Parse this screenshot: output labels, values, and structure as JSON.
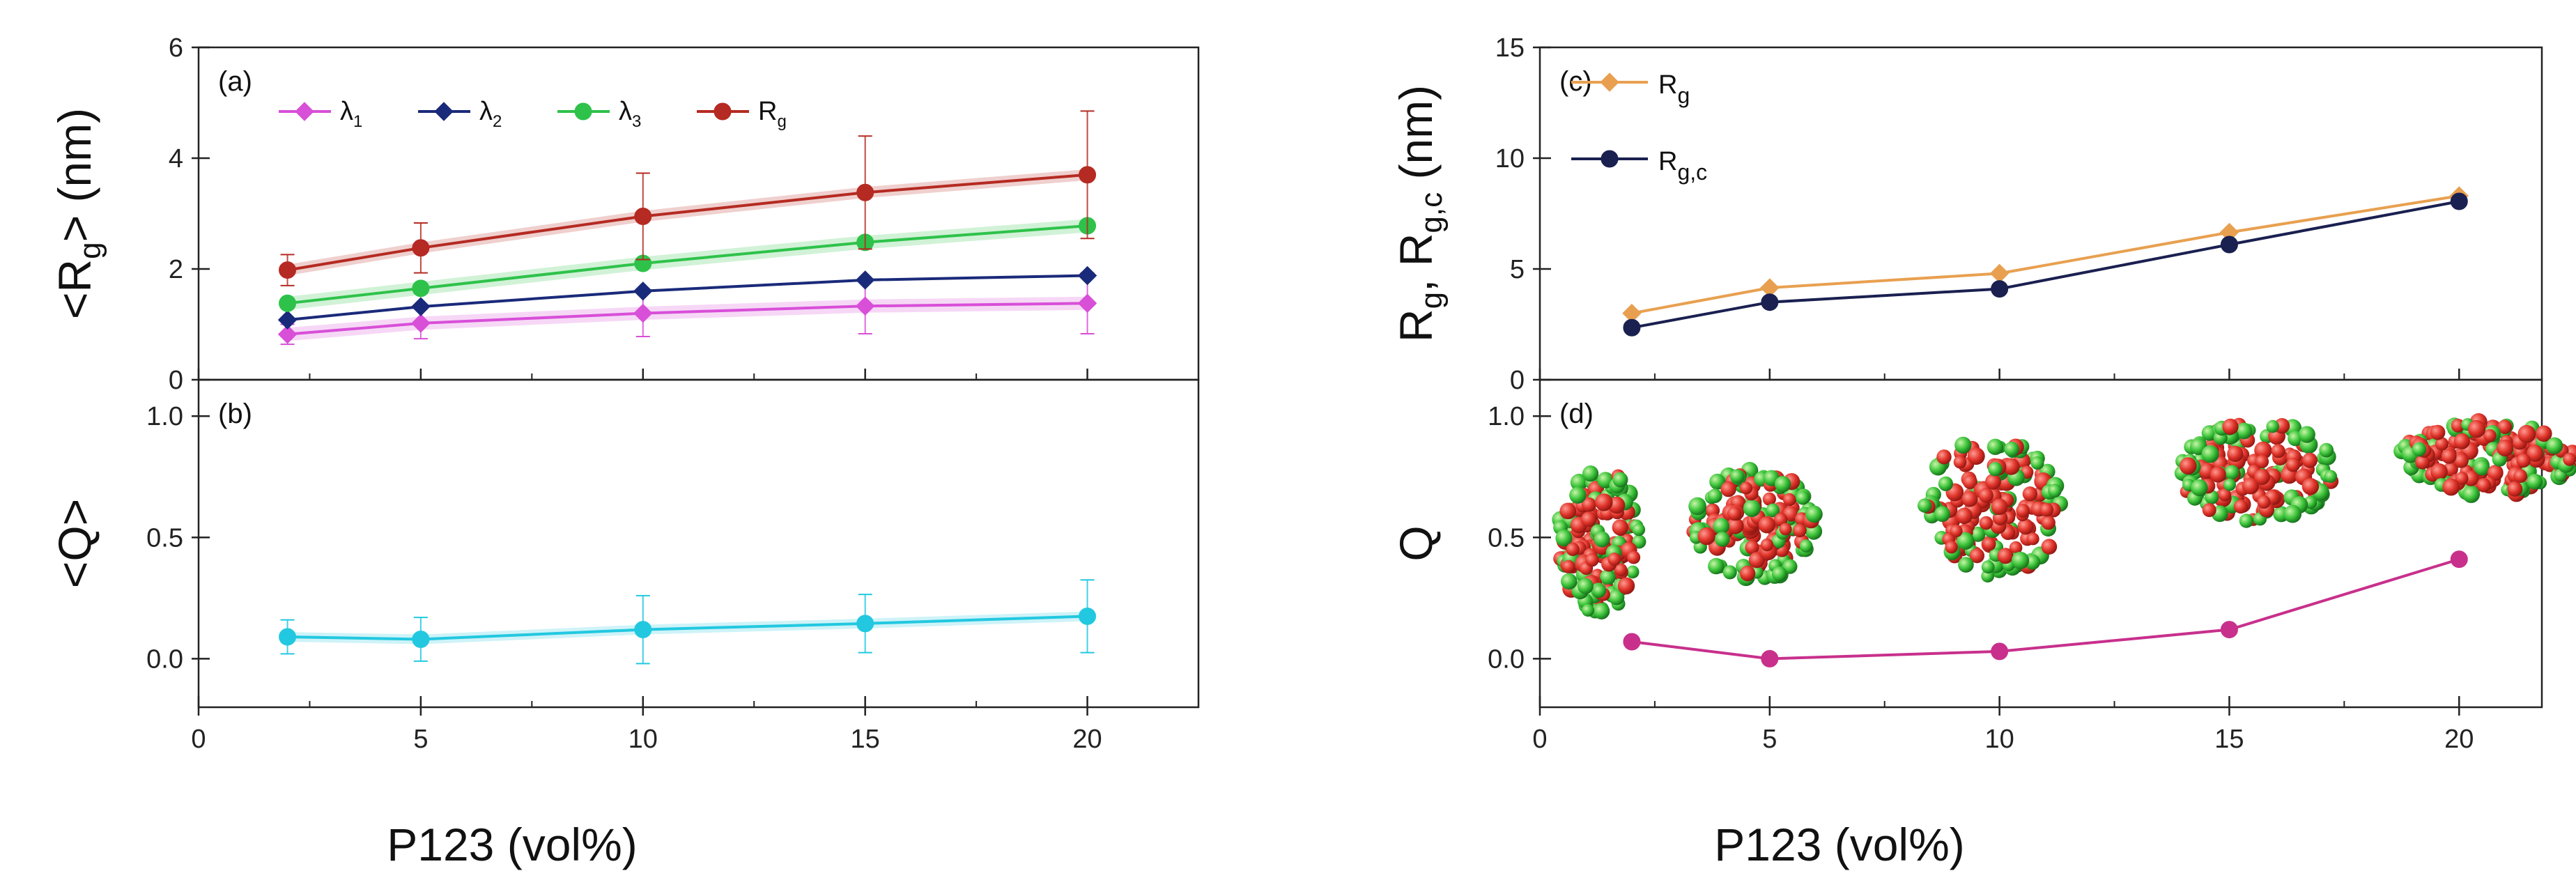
{
  "figure": {
    "xlabel_left": "P123 (vol%)",
    "xlabel_right": "P123 (vol%)"
  },
  "chart_data": [
    {
      "panel": "(a)",
      "type": "line",
      "ylabel_main": "<R",
      "ylabel_sub": "g",
      "ylabel_tail": "> (nm)",
      "xlim": [
        0,
        22.5
      ],
      "ylim": [
        0,
        6
      ],
      "yticks": [
        0,
        2,
        4,
        6
      ],
      "series": [
        {
          "name": "λ1",
          "base": "λ",
          "sub": "1",
          "color": "#d84fd8",
          "marker": "diamond",
          "x": [
            2,
            5,
            10,
            15,
            20
          ],
          "y": [
            0.82,
            1.02,
            1.2,
            1.33,
            1.38
          ],
          "err": [
            0.18,
            0.28,
            0.42,
            0.5,
            0.55
          ],
          "band": 0.12
        },
        {
          "name": "λ2",
          "base": "λ",
          "sub": "2",
          "color": "#1a2a7a",
          "marker": "diamond",
          "x": [
            2,
            5,
            10,
            15,
            20
          ],
          "y": [
            1.08,
            1.32,
            1.6,
            1.8,
            1.88
          ],
          "err": [
            0,
            0,
            0,
            0,
            0
          ],
          "band": 0
        },
        {
          "name": "λ3",
          "base": "λ",
          "sub": "3",
          "color": "#2ec24a",
          "marker": "circle",
          "x": [
            2,
            5,
            10,
            15,
            20
          ],
          "y": [
            1.38,
            1.65,
            2.1,
            2.48,
            2.78
          ],
          "err": [
            0,
            0,
            0,
            0,
            0
          ],
          "band": 0.12
        },
        {
          "name": "Rg",
          "base": "R",
          "sub": "g",
          "color": "#b52a22",
          "marker": "circle",
          "x": [
            2,
            5,
            10,
            15,
            20
          ],
          "y": [
            1.98,
            2.38,
            2.95,
            3.38,
            3.7
          ],
          "err": [
            0.28,
            0.45,
            0.78,
            1.02,
            1.15
          ],
          "band": 0.1
        }
      ]
    },
    {
      "panel": "(b)",
      "type": "line",
      "ylabel_main": "<Q>",
      "xlim": [
        0,
        22.5
      ],
      "ylim": [
        -0.2,
        1.15
      ],
      "yticks": [
        0.0,
        0.5,
        1.0
      ],
      "ytick_labels": [
        "0.0",
        "0.5",
        "1.0"
      ],
      "xticks": [
        0,
        5,
        10,
        15,
        20
      ],
      "series": [
        {
          "name": "<Q>",
          "color": "#22c8e0",
          "marker": "circle",
          "x": [
            2,
            5,
            10,
            15,
            20
          ],
          "y": [
            0.09,
            0.08,
            0.12,
            0.145,
            0.175
          ],
          "err": [
            0.07,
            0.09,
            0.14,
            0.12,
            0.15
          ],
          "band": 0.02
        }
      ]
    },
    {
      "panel": "(c)",
      "type": "line",
      "ylabel_main": "R",
      "ylabel_sub": "g",
      "ylabel_mid": ", R",
      "ylabel_sub2": "g,c",
      "ylabel_tail": " (nm)",
      "xlim": [
        0,
        21.8
      ],
      "ylim": [
        0,
        15
      ],
      "yticks": [
        0,
        5,
        10,
        15
      ],
      "series": [
        {
          "name": "Rg",
          "base": "R",
          "sub": "g",
          "color": "#e8a050",
          "marker": "diamond",
          "x": [
            2,
            5,
            10,
            15,
            20
          ],
          "y": [
            3.0,
            4.15,
            4.8,
            6.65,
            8.3
          ]
        },
        {
          "name": "Rg,c",
          "base": "R",
          "sub": "g,c",
          "color": "#1a2050",
          "marker": "circle",
          "x": [
            2,
            5,
            10,
            15,
            20
          ],
          "y": [
            2.35,
            3.5,
            4.1,
            6.1,
            8.05
          ]
        }
      ]
    },
    {
      "panel": "(d)",
      "type": "line",
      "ylabel_main": "Q",
      "xlim": [
        0,
        21.8
      ],
      "ylim": [
        -0.2,
        1.15
      ],
      "yticks": [
        0.0,
        0.5,
        1.0
      ],
      "ytick_labels": [
        "0.0",
        "0.5",
        "1.0"
      ],
      "xticks": [
        0,
        5,
        10,
        15,
        20
      ],
      "series": [
        {
          "name": "Q",
          "color": "#c8308c",
          "marker": "circle",
          "x": [
            2,
            5,
            10,
            15,
            20
          ],
          "y": [
            0.07,
            0.0,
            0.03,
            0.12,
            0.41
          ]
        }
      ],
      "insets": [
        "micelle at 2 vol%",
        "micelle at 5 vol%",
        "micelle at 10 vol%",
        "micelle at 15 vol%",
        "micelle at 20 vol%"
      ]
    }
  ]
}
